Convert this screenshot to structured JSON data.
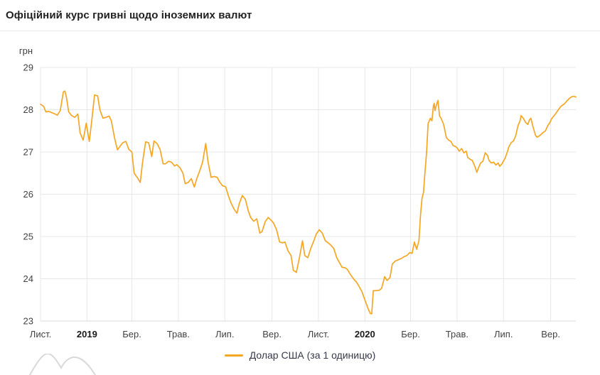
{
  "header": {
    "title": "Офіційний курс гривні щодо іноземних валют"
  },
  "colors": {
    "line": "#f5a623",
    "grid": "#e7e7e7",
    "axis_text": "#424242",
    "year_text": "#1a1a1a",
    "title_text": "#212121",
    "divider": "#e8e8e8",
    "legend_text": "#37394a",
    "watermark": "#d9d9d9"
  },
  "chart_data": {
    "type": "line",
    "title": "Офіційний курс гривні щодо іноземних валют",
    "xlabel": "",
    "ylabel": "грн",
    "ylim": [
      23,
      29
    ],
    "y_ticks": [
      29,
      28,
      27,
      26,
      25,
      24,
      23
    ],
    "grid": true,
    "legend_position": "bottom",
    "x_axis_note": "x values are days since 2018-11-01; axis ticks every 2 months",
    "start_date": "2018-11-01",
    "end_date": "2020-10-04",
    "x_range_days": [
      0,
      703
    ],
    "x_ticks": [
      {
        "label": "Лист.",
        "day": 0,
        "bold": false
      },
      {
        "label": "2019",
        "day": 61,
        "bold": true
      },
      {
        "label": "Бер.",
        "day": 120,
        "bold": false
      },
      {
        "label": "Трав.",
        "day": 181,
        "bold": false
      },
      {
        "label": "Лип.",
        "day": 242,
        "bold": false
      },
      {
        "label": "Вер.",
        "day": 304,
        "bold": false
      },
      {
        "label": "Лист.",
        "day": 365,
        "bold": false
      },
      {
        "label": "2020",
        "day": 426,
        "bold": true
      },
      {
        "label": "Бер.",
        "day": 486,
        "bold": false
      },
      {
        "label": "Трав.",
        "day": 547,
        "bold": false
      },
      {
        "label": "Лип.",
        "day": 608,
        "bold": false
      },
      {
        "label": "Вер.",
        "day": 670,
        "bold": false
      }
    ],
    "series": [
      {
        "name": "Долар США (за 1 одиницю)",
        "color": "#f5a623",
        "points": [
          [
            0,
            28.13
          ],
          [
            4,
            28.08
          ],
          [
            7,
            27.95
          ],
          [
            11,
            27.96
          ],
          [
            15,
            27.93
          ],
          [
            19,
            27.9
          ],
          [
            22,
            27.87
          ],
          [
            26,
            27.98
          ],
          [
            30,
            28.42
          ],
          [
            32,
            28.44
          ],
          [
            34,
            28.3
          ],
          [
            37,
            27.95
          ],
          [
            41,
            27.86
          ],
          [
            45,
            27.82
          ],
          [
            49,
            27.9
          ],
          [
            52,
            27.45
          ],
          [
            56,
            27.28
          ],
          [
            60,
            27.68
          ],
          [
            64,
            27.25
          ],
          [
            67,
            27.7
          ],
          [
            71,
            28.35
          ],
          [
            75,
            28.33
          ],
          [
            78,
            28.0
          ],
          [
            82,
            27.8
          ],
          [
            86,
            27.82
          ],
          [
            90,
            27.85
          ],
          [
            93,
            27.74
          ],
          [
            97,
            27.35
          ],
          [
            101,
            27.05
          ],
          [
            105,
            27.15
          ],
          [
            108,
            27.22
          ],
          [
            112,
            27.25
          ],
          [
            116,
            27.06
          ],
          [
            120,
            27.0
          ],
          [
            123,
            26.5
          ],
          [
            127,
            26.4
          ],
          [
            131,
            26.28
          ],
          [
            134,
            26.75
          ],
          [
            138,
            27.24
          ],
          [
            142,
            27.22
          ],
          [
            146,
            26.89
          ],
          [
            149,
            27.26
          ],
          [
            153,
            27.2
          ],
          [
            157,
            27.06
          ],
          [
            161,
            26.72
          ],
          [
            164,
            26.72
          ],
          [
            168,
            26.78
          ],
          [
            172,
            26.76
          ],
          [
            176,
            26.67
          ],
          [
            179,
            26.7
          ],
          [
            183,
            26.63
          ],
          [
            187,
            26.5
          ],
          [
            190,
            26.25
          ],
          [
            194,
            26.28
          ],
          [
            198,
            26.37
          ],
          [
            202,
            26.17
          ],
          [
            205,
            26.36
          ],
          [
            209,
            26.55
          ],
          [
            213,
            26.77
          ],
          [
            217,
            27.2
          ],
          [
            220,
            26.77
          ],
          [
            224,
            26.4
          ],
          [
            228,
            26.42
          ],
          [
            232,
            26.4
          ],
          [
            235,
            26.3
          ],
          [
            239,
            26.2
          ],
          [
            243,
            26.18
          ],
          [
            247,
            25.95
          ],
          [
            250,
            25.8
          ],
          [
            254,
            25.65
          ],
          [
            258,
            25.55
          ],
          [
            261,
            25.78
          ],
          [
            265,
            25.97
          ],
          [
            269,
            25.88
          ],
          [
            273,
            25.6
          ],
          [
            276,
            25.45
          ],
          [
            280,
            25.36
          ],
          [
            284,
            25.42
          ],
          [
            288,
            25.08
          ],
          [
            291,
            25.12
          ],
          [
            295,
            25.35
          ],
          [
            299,
            25.45
          ],
          [
            303,
            25.38
          ],
          [
            306,
            25.32
          ],
          [
            310,
            25.16
          ],
          [
            314,
            24.87
          ],
          [
            318,
            24.85
          ],
          [
            321,
            24.87
          ],
          [
            325,
            24.66
          ],
          [
            329,
            24.55
          ],
          [
            332,
            24.2
          ],
          [
            336,
            24.15
          ],
          [
            340,
            24.5
          ],
          [
            344,
            24.9
          ],
          [
            347,
            24.55
          ],
          [
            351,
            24.5
          ],
          [
            355,
            24.72
          ],
          [
            359,
            24.9
          ],
          [
            362,
            25.05
          ],
          [
            366,
            25.16
          ],
          [
            370,
            25.08
          ],
          [
            374,
            24.9
          ],
          [
            377,
            24.86
          ],
          [
            381,
            24.8
          ],
          [
            385,
            24.72
          ],
          [
            389,
            24.5
          ],
          [
            392,
            24.4
          ],
          [
            396,
            24.27
          ],
          [
            400,
            24.26
          ],
          [
            403,
            24.22
          ],
          [
            407,
            24.1
          ],
          [
            411,
            24.0
          ],
          [
            415,
            23.92
          ],
          [
            418,
            23.83
          ],
          [
            422,
            23.7
          ],
          [
            426,
            23.5
          ],
          [
            430,
            23.3
          ],
          [
            433,
            23.18
          ],
          [
            435,
            23.17
          ],
          [
            437,
            23.72
          ],
          [
            441,
            23.72
          ],
          [
            445,
            23.73
          ],
          [
            448,
            23.78
          ],
          [
            452,
            24.05
          ],
          [
            455,
            23.96
          ],
          [
            459,
            24.03
          ],
          [
            462,
            24.35
          ],
          [
            466,
            24.42
          ],
          [
            470,
            24.45
          ],
          [
            474,
            24.48
          ],
          [
            477,
            24.52
          ],
          [
            481,
            24.55
          ],
          [
            485,
            24.62
          ],
          [
            488,
            24.6
          ],
          [
            491,
            24.87
          ],
          [
            494,
            24.7
          ],
          [
            497,
            24.9
          ],
          [
            499,
            25.5
          ],
          [
            501,
            25.9
          ],
          [
            503,
            26.05
          ],
          [
            504,
            26.3
          ],
          [
            507,
            27.0
          ],
          [
            509,
            27.67
          ],
          [
            512,
            27.8
          ],
          [
            514,
            27.74
          ],
          [
            516,
            28.1
          ],
          [
            517,
            28.15
          ],
          [
            518,
            27.98
          ],
          [
            520,
            28.12
          ],
          [
            522,
            28.22
          ],
          [
            524,
            27.85
          ],
          [
            526,
            27.8
          ],
          [
            529,
            27.67
          ],
          [
            530,
            27.6
          ],
          [
            533,
            27.34
          ],
          [
            536,
            27.28
          ],
          [
            539,
            27.25
          ],
          [
            542,
            27.15
          ],
          [
            545,
            27.13
          ],
          [
            547,
            27.1
          ],
          [
            550,
            27.02
          ],
          [
            553,
            27.08
          ],
          [
            556,
            26.98
          ],
          [
            559,
            27.02
          ],
          [
            561,
            26.87
          ],
          [
            564,
            26.83
          ],
          [
            567,
            26.8
          ],
          [
            570,
            26.68
          ],
          [
            573,
            26.52
          ],
          [
            575,
            26.62
          ],
          [
            578,
            26.74
          ],
          [
            581,
            26.78
          ],
          [
            584,
            26.98
          ],
          [
            587,
            26.92
          ],
          [
            589,
            26.8
          ],
          [
            592,
            26.74
          ],
          [
            595,
            26.76
          ],
          [
            598,
            26.69
          ],
          [
            601,
            26.74
          ],
          [
            603,
            26.66
          ],
          [
            606,
            26.72
          ],
          [
            610,
            26.85
          ],
          [
            613,
            27.0
          ],
          [
            615,
            27.12
          ],
          [
            618,
            27.22
          ],
          [
            621,
            27.26
          ],
          [
            624,
            27.38
          ],
          [
            627,
            27.62
          ],
          [
            630,
            27.75
          ],
          [
            631,
            27.86
          ],
          [
            634,
            27.8
          ],
          [
            637,
            27.7
          ],
          [
            640,
            27.65
          ],
          [
            642,
            27.76
          ],
          [
            644,
            27.8
          ],
          [
            647,
            27.58
          ],
          [
            650,
            27.4
          ],
          [
            652,
            27.35
          ],
          [
            655,
            27.38
          ],
          [
            657,
            27.41
          ],
          [
            660,
            27.46
          ],
          [
            663,
            27.5
          ],
          [
            666,
            27.62
          ],
          [
            669,
            27.7
          ],
          [
            671,
            27.78
          ],
          [
            674,
            27.85
          ],
          [
            677,
            27.92
          ],
          [
            680,
            28.0
          ],
          [
            683,
            28.07
          ],
          [
            685,
            28.1
          ],
          [
            688,
            28.14
          ],
          [
            691,
            28.2
          ],
          [
            694,
            28.26
          ],
          [
            697,
            28.3
          ],
          [
            700,
            28.32
          ],
          [
            703,
            28.3
          ]
        ]
      }
    ]
  },
  "legend": {
    "items": [
      {
        "label": "Долар США (за 1 одиницю)"
      }
    ]
  }
}
